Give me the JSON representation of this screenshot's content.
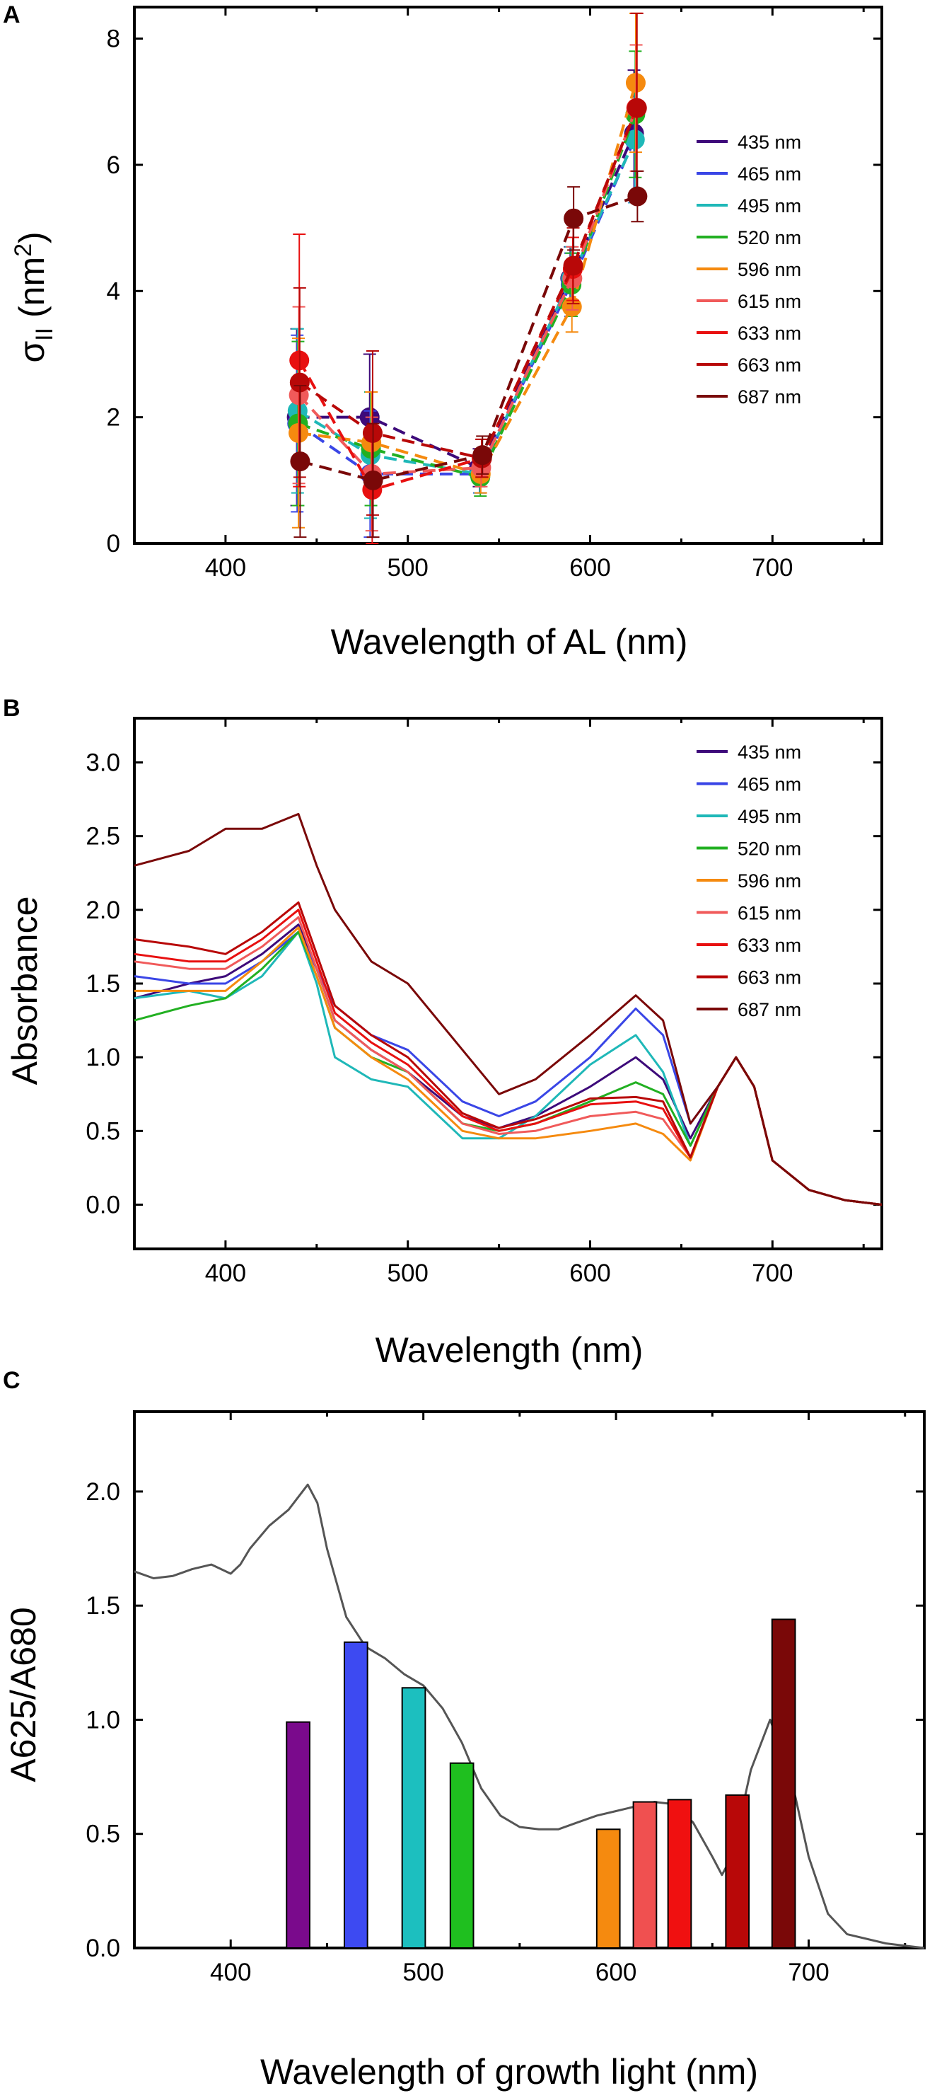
{
  "chart_data": [
    {
      "panel": "A",
      "type": "scatter",
      "xlabel": "Wavelength of AL (nm)",
      "ylabel": "σII (nm2)",
      "xlim": [
        350,
        760
      ],
      "ylim": [
        0,
        8.5
      ],
      "xticks": [
        400,
        500,
        600,
        700
      ],
      "yticks": [
        0,
        2,
        4,
        6,
        8
      ],
      "x": [
        440,
        480,
        540,
        590,
        625
      ],
      "legend_position": "right",
      "series": [
        {
          "name": "435 nm",
          "color": "#3d0a7a",
          "values": [
            2.0,
            2.0,
            1.2,
            4.2,
            6.5
          ],
          "errors": [
            1.4,
            1.0,
            0.3,
            0.5,
            1.0
          ]
        },
        {
          "name": "465 nm",
          "color": "#3a46e6",
          "values": [
            1.9,
            1.1,
            1.1,
            4.1,
            6.4
          ],
          "errors": [
            1.4,
            1.0,
            0.3,
            0.5,
            1.0
          ]
        },
        {
          "name": "495 nm",
          "color": "#1fb8b8",
          "values": [
            2.1,
            1.4,
            1.1,
            4.2,
            6.4
          ],
          "errors": [
            1.3,
            1.0,
            0.3,
            0.5,
            1.0
          ]
        },
        {
          "name": "520 nm",
          "color": "#22b022",
          "values": [
            1.9,
            1.5,
            1.05,
            4.1,
            6.8
          ],
          "errors": [
            1.3,
            0.9,
            0.3,
            0.5,
            1.0
          ]
        },
        {
          "name": "596 nm",
          "color": "#f58a0f",
          "values": [
            1.75,
            1.6,
            1.1,
            3.75,
            7.3
          ],
          "errors": [
            1.5,
            0.8,
            0.3,
            0.4,
            1.1
          ]
        },
        {
          "name": "615 nm",
          "color": "#f05a5a",
          "values": [
            2.35,
            1.1,
            1.2,
            4.2,
            6.9
          ],
          "errors": [
            1.4,
            0.9,
            0.3,
            0.5,
            1.0
          ]
        },
        {
          "name": "633 nm",
          "color": "#e81010",
          "values": [
            2.9,
            0.85,
            1.35,
            4.35,
            6.9
          ],
          "errors": [
            2.0,
            0.9,
            0.3,
            0.5,
            1.5
          ]
        },
        {
          "name": "663 nm",
          "color": "#b80808",
          "values": [
            2.55,
            1.75,
            1.35,
            4.4,
            6.9
          ],
          "errors": [
            1.5,
            1.3,
            0.3,
            0.6,
            1.5
          ]
        },
        {
          "name": "687 nm",
          "color": "#7a0808",
          "values": [
            1.3,
            1.0,
            1.4,
            5.15,
            5.5
          ],
          "errors": [
            1.2,
            0.9,
            0.3,
            0.5,
            0.4
          ]
        }
      ]
    },
    {
      "panel": "B",
      "type": "line",
      "xlabel": "Wavelength (nm)",
      "ylabel": "Absorbance",
      "xlim": [
        350,
        760
      ],
      "ylim": [
        -0.3,
        3.3
      ],
      "xticks": [
        400,
        500,
        600,
        700
      ],
      "yticks": [
        0.0,
        0.5,
        1.0,
        1.5,
        2.0,
        2.5,
        3.0
      ],
      "legend_position": "top-right",
      "x": [
        350,
        380,
        400,
        420,
        440,
        450,
        460,
        480,
        500,
        530,
        550,
        570,
        600,
        625,
        640,
        655,
        670,
        680,
        690,
        700,
        720,
        740,
        760
      ],
      "series": [
        {
          "name": "435 nm",
          "color": "#3d0a7a",
          "values": [
            1.4,
            1.5,
            1.55,
            1.7,
            1.9,
            1.6,
            1.25,
            1.05,
            0.9,
            0.6,
            0.52,
            0.6,
            0.8,
            1.0,
            0.85,
            0.45,
            0.8,
            1.0,
            0.8,
            0.3,
            0.1,
            0.03,
            0.0
          ]
        },
        {
          "name": "465 nm",
          "color": "#3a46e6",
          "values": [
            1.55,
            1.5,
            1.5,
            1.65,
            1.85,
            1.6,
            1.35,
            1.15,
            1.05,
            0.7,
            0.6,
            0.7,
            1.0,
            1.33,
            1.15,
            0.55,
            0.8,
            1.0,
            0.8,
            0.3,
            0.1,
            0.03,
            0.0
          ]
        },
        {
          "name": "495 nm",
          "color": "#1fb8b8",
          "values": [
            1.4,
            1.45,
            1.4,
            1.55,
            1.85,
            1.5,
            1.0,
            0.85,
            0.8,
            0.45,
            0.45,
            0.6,
            0.95,
            1.15,
            0.9,
            0.4,
            0.8,
            1.0,
            0.8,
            0.3,
            0.1,
            0.03,
            0.0
          ]
        },
        {
          "name": "520 nm",
          "color": "#22b022",
          "values": [
            1.25,
            1.35,
            1.4,
            1.6,
            1.85,
            1.55,
            1.2,
            1.0,
            0.9,
            0.55,
            0.5,
            0.55,
            0.7,
            0.83,
            0.75,
            0.4,
            0.8,
            1.0,
            0.8,
            0.3,
            0.1,
            0.03,
            0.0
          ]
        },
        {
          "name": "596 nm",
          "color": "#f58a0f",
          "values": [
            1.45,
            1.45,
            1.45,
            1.65,
            1.88,
            1.55,
            1.2,
            1.0,
            0.85,
            0.5,
            0.45,
            0.45,
            0.5,
            0.55,
            0.48,
            0.3,
            0.8,
            1.0,
            0.8,
            0.3,
            0.1,
            0.03,
            0.0
          ]
        },
        {
          "name": "615 nm",
          "color": "#f05a5a",
          "values": [
            1.65,
            1.6,
            1.6,
            1.75,
            1.95,
            1.6,
            1.25,
            1.05,
            0.9,
            0.55,
            0.48,
            0.5,
            0.6,
            0.63,
            0.58,
            0.32,
            0.8,
            1.0,
            0.8,
            0.3,
            0.1,
            0.03,
            0.0
          ]
        },
        {
          "name": "633 nm",
          "color": "#e81010",
          "values": [
            1.7,
            1.65,
            1.65,
            1.8,
            2.0,
            1.65,
            1.3,
            1.1,
            0.95,
            0.6,
            0.5,
            0.55,
            0.68,
            0.7,
            0.65,
            0.32,
            0.8,
            1.0,
            0.8,
            0.3,
            0.1,
            0.03,
            0.0
          ]
        },
        {
          "name": "663 nm",
          "color": "#b80808",
          "values": [
            1.8,
            1.75,
            1.7,
            1.85,
            2.05,
            1.7,
            1.35,
            1.15,
            1.0,
            0.62,
            0.52,
            0.58,
            0.72,
            0.73,
            0.7,
            0.32,
            0.8,
            1.0,
            0.8,
            0.3,
            0.1,
            0.03,
            0.0
          ]
        },
        {
          "name": "687 nm",
          "color": "#7a0808",
          "values": [
            2.3,
            2.4,
            2.55,
            2.55,
            2.65,
            2.3,
            2.0,
            1.65,
            1.5,
            1.05,
            0.75,
            0.85,
            1.15,
            1.42,
            1.25,
            0.55,
            0.8,
            1.0,
            0.8,
            0.3,
            0.1,
            0.03,
            0.0
          ]
        }
      ]
    },
    {
      "panel": "C",
      "type": "bar",
      "xlabel": "Wavelength of growth light (nm)",
      "ylabel": "A625/A680",
      "xlim": [
        350,
        760
      ],
      "ylim": [
        0,
        2.35
      ],
      "xticks": [
        400,
        500,
        600,
        700
      ],
      "yticks": [
        0.0,
        0.5,
        1.0,
        1.5,
        2.0
      ],
      "bar_width_nm": 12,
      "categories": [
        "435 nm",
        "465 nm",
        "495 nm",
        "520 nm",
        "596 nm",
        "615 nm",
        "633 nm",
        "663 nm",
        "687 nm"
      ],
      "bar_x": [
        435,
        465,
        495,
        520,
        596,
        615,
        633,
        663,
        687
      ],
      "values": [
        0.99,
        1.34,
        1.14,
        0.81,
        0.52,
        0.64,
        0.65,
        0.67,
        1.44
      ],
      "colors": [
        "#7a0a8c",
        "#3d4af2",
        "#1cbfbf",
        "#1fbf1f",
        "#f58a0f",
        "#f05050",
        "#f01010",
        "#b80808",
        "#7a0808"
      ],
      "background_spectrum": {
        "color": "#555555",
        "x": [
          350,
          360,
          370,
          380,
          390,
          400,
          405,
          410,
          420,
          430,
          440,
          445,
          450,
          460,
          470,
          480,
          490,
          500,
          510,
          520,
          530,
          540,
          550,
          560,
          570,
          580,
          590,
          600,
          610,
          620,
          630,
          640,
          650,
          655,
          660,
          670,
          680,
          690,
          700,
          710,
          720,
          740,
          760
        ],
        "values": [
          1.65,
          1.62,
          1.63,
          1.66,
          1.68,
          1.64,
          1.68,
          1.75,
          1.85,
          1.92,
          2.03,
          1.95,
          1.75,
          1.45,
          1.32,
          1.27,
          1.2,
          1.15,
          1.05,
          0.9,
          0.7,
          0.58,
          0.53,
          0.52,
          0.52,
          0.55,
          0.58,
          0.6,
          0.62,
          0.64,
          0.63,
          0.55,
          0.4,
          0.32,
          0.4,
          0.78,
          1.0,
          0.78,
          0.4,
          0.15,
          0.06,
          0.02,
          0.0
        ]
      }
    }
  ],
  "panel_labels": [
    "A",
    "B",
    "C"
  ]
}
